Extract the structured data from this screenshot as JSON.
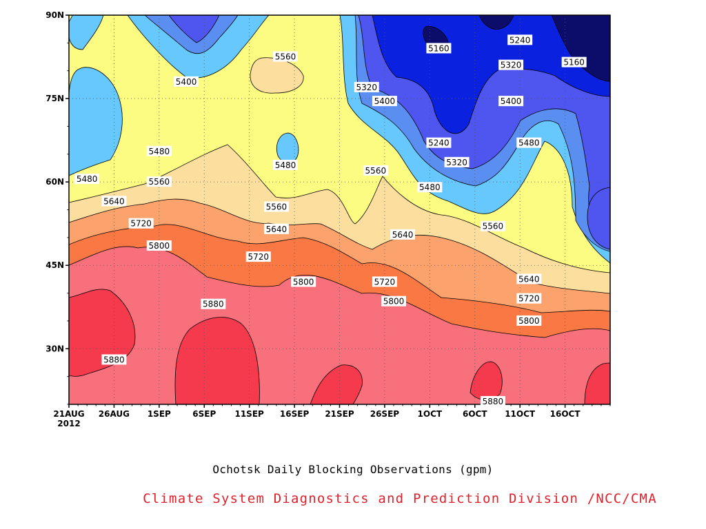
{
  "chart_data": {
    "type": "heatmap",
    "title": "Ochotsk Daily Blocking Observations (gpm)",
    "credit": "Climate System Diagnostics and Prediction Division /NCC/CMA",
    "credit_color": "#e0202a",
    "x_axis": {
      "year_label": "2012",
      "ticks": [
        "21AUG",
        "26AUG",
        "1SEP",
        "6SEP",
        "11SEP",
        "16SEP",
        "21SEP",
        "26SEP",
        "1OCT",
        "6OCT",
        "11OCT",
        "16OCT"
      ],
      "range": [
        "2012-08-21",
        "2012-10-20"
      ]
    },
    "y_axis": {
      "ticks": [
        "30N",
        "45N",
        "60N",
        "75N",
        "90N"
      ],
      "range": [
        20,
        90
      ]
    },
    "grid": true,
    "contour_levels": [
      5160,
      5240,
      5320,
      5400,
      5480,
      5560,
      5640,
      5720,
      5800,
      5880
    ],
    "fill_colors": {
      "below_5160": "#0c0d6b",
      "5160_5240": "#0a21df",
      "5240_5320": "#4f55ef",
      "5320_5400": "#5a8ef0",
      "5400_5480": "#66c8fc",
      "5480_5560": "#fcfc82",
      "5560_5640": "#fcdf9f",
      "5640_5720": "#fca26c",
      "5720_5800": "#fa7844",
      "5800_5880": "#f8707c",
      "above_5880": "#f43a4c"
    },
    "contour_labels": [
      {
        "value": "5160",
        "date": "2012-10-01",
        "lat": 84
      },
      {
        "value": "5160",
        "date": "2012-10-16",
        "lat": 81.5
      },
      {
        "value": "5240",
        "date": "2012-10-10",
        "lat": 85.5
      },
      {
        "value": "5240",
        "date": "2012-10-01",
        "lat": 67
      },
      {
        "value": "5320",
        "date": "2012-09-23",
        "lat": 77
      },
      {
        "value": "5320",
        "date": "2012-10-03",
        "lat": 63.5
      },
      {
        "value": "5320",
        "date": "2012-10-09",
        "lat": 81
      },
      {
        "value": "5400",
        "date": "2012-09-03",
        "lat": 78
      },
      {
        "value": "5400",
        "date": "2012-09-25",
        "lat": 74.5
      },
      {
        "value": "5400",
        "date": "2012-10-09",
        "lat": 74.5
      },
      {
        "value": "5480",
        "date": "2012-08-23",
        "lat": 60.5
      },
      {
        "value": "5480",
        "date": "2012-08-31",
        "lat": 65.5
      },
      {
        "value": "5480",
        "date": "2012-09-14",
        "lat": 63
      },
      {
        "value": "5480",
        "date": "2012-09-30",
        "lat": 59
      },
      {
        "value": "5480",
        "date": "2012-10-11",
        "lat": 67
      },
      {
        "value": "5560",
        "date": "2012-09-14",
        "lat": 82.5
      },
      {
        "value": "5560",
        "date": "2012-08-31",
        "lat": 60
      },
      {
        "value": "5560",
        "date": "2012-09-13",
        "lat": 55.5
      },
      {
        "value": "5560",
        "date": "2012-09-24",
        "lat": 62
      },
      {
        "value": "5560",
        "date": "2012-10-07",
        "lat": 52
      },
      {
        "value": "5640",
        "date": "2012-08-26",
        "lat": 56.5
      },
      {
        "value": "5640",
        "date": "2012-09-13",
        "lat": 51.5
      },
      {
        "value": "5640",
        "date": "2012-09-27",
        "lat": 50.5
      },
      {
        "value": "5640",
        "date": "2012-10-11",
        "lat": 42.5
      },
      {
        "value": "5720",
        "date": "2012-08-29",
        "lat": 52.5
      },
      {
        "value": "5720",
        "date": "2012-09-11",
        "lat": 46.5
      },
      {
        "value": "5720",
        "date": "2012-09-25",
        "lat": 42
      },
      {
        "value": "5720",
        "date": "2012-10-11",
        "lat": 39
      },
      {
        "value": "5800",
        "date": "2012-08-31",
        "lat": 48.5
      },
      {
        "value": "5800",
        "date": "2012-09-16",
        "lat": 42
      },
      {
        "value": "5800",
        "date": "2012-09-26",
        "lat": 38.5
      },
      {
        "value": "5800",
        "date": "2012-10-11",
        "lat": 35
      },
      {
        "value": "5880",
        "date": "2012-08-26",
        "lat": 28
      },
      {
        "value": "5880",
        "date": "2012-09-06",
        "lat": 38
      },
      {
        "value": "5880",
        "date": "2012-10-07",
        "lat": 20.5
      }
    ]
  }
}
